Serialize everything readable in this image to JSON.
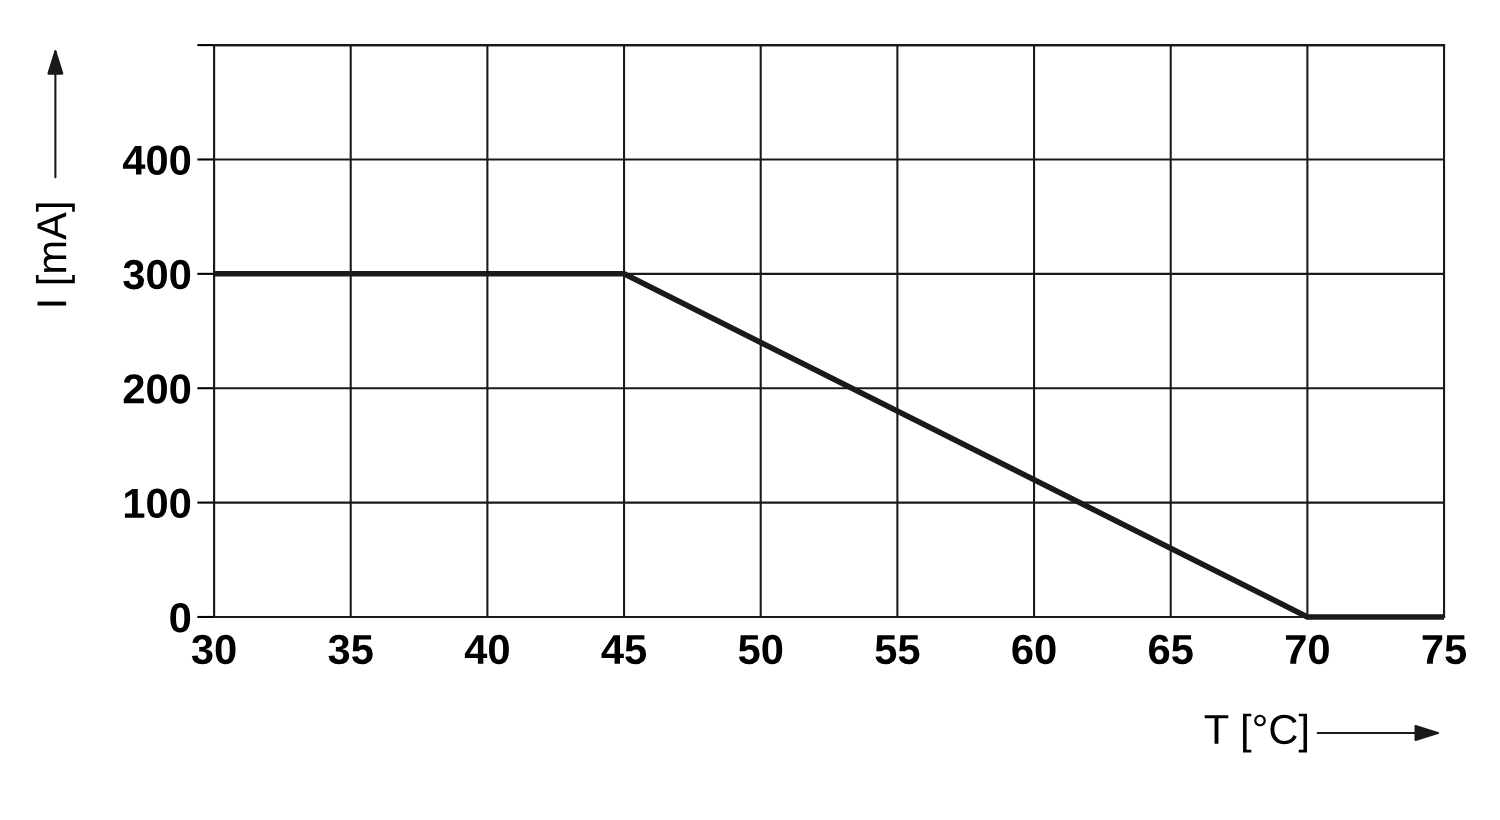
{
  "chart_data": {
    "type": "line",
    "xlabel": "T [°C]",
    "ylabel": "I [mA]",
    "x": [
      30,
      45,
      70,
      75
    ],
    "series": [
      {
        "color": "#1a1a1a",
        "values": [
          300,
          300,
          0,
          0
        ]
      }
    ],
    "xlim": [
      30,
      75
    ],
    "xticks": [
      30,
      35,
      40,
      45,
      50,
      55,
      60,
      65,
      70,
      75
    ],
    "ylim": [
      0,
      500
    ],
    "yticks": [
      0,
      100,
      200,
      300,
      400,
      {
        "value": 500,
        "label": null
      }
    ],
    "grid": true,
    "marker": "none",
    "line_style": "solid"
  }
}
